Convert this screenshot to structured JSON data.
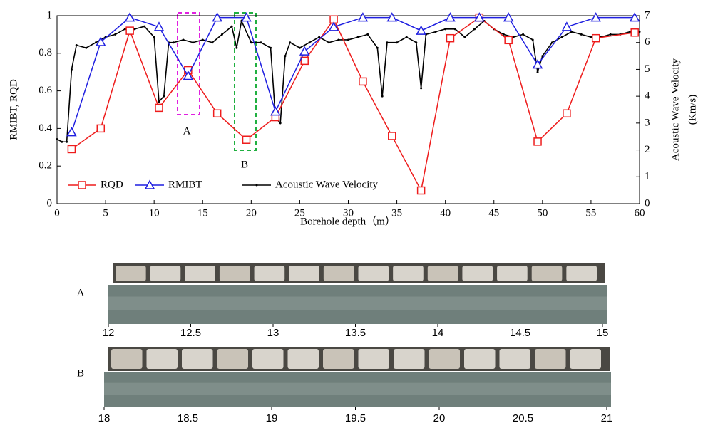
{
  "chart_data": {
    "type": "line",
    "xlabel": "Borehole depth（m）",
    "ylabel": "RMIBT, RQD",
    "y2label": [
      "Acoustic Wave Velocity",
      "(Km/s)"
    ],
    "annotations": [
      "A",
      "B"
    ],
    "xlim": [
      0,
      60
    ],
    "xticks": [
      0,
      5,
      10,
      15,
      20,
      25,
      30,
      35,
      40,
      45,
      50,
      55,
      60
    ],
    "ylim": [
      0,
      1
    ],
    "yticks": [
      0,
      0.2,
      0.4,
      0.6,
      0.8,
      1
    ],
    "y2lim": [
      0,
      7
    ],
    "y2ticks": [
      0,
      1,
      2,
      3,
      4,
      5,
      6,
      7
    ],
    "grid": false,
    "legend": "lower-left",
    "series": [
      {
        "name": "RQD",
        "color": "#ee1c1c",
        "marker": "square",
        "x": [
          1.5,
          4.5,
          7.5,
          10.5,
          13.5,
          16.5,
          19.5,
          22.5,
          25.5,
          28.5,
          31.5,
          34.5,
          37.5,
          40.5,
          43.5,
          46.5,
          49.5,
          52.5,
          55.5,
          59.5
        ],
        "values": [
          0.29,
          0.4,
          0.92,
          0.51,
          0.71,
          0.48,
          0.34,
          0.46,
          0.76,
          0.98,
          0.65,
          0.36,
          0.07,
          0.88,
          0.99,
          0.87,
          0.33,
          0.48,
          0.88,
          0.91
        ]
      },
      {
        "name": "RMIBT",
        "color": "#1f1fe0",
        "marker": "triangle",
        "x": [
          1.5,
          4.5,
          7.5,
          10.5,
          13.5,
          16.5,
          19.5,
          22.5,
          25.5,
          28.5,
          31.5,
          34.5,
          37.5,
          40.5,
          43.5,
          46.5,
          49.5,
          52.5,
          55.5,
          59.5
        ],
        "values": [
          0.38,
          0.86,
          0.99,
          0.94,
          0.68,
          0.99,
          0.99,
          0.49,
          0.81,
          0.94,
          0.99,
          0.99,
          0.92,
          0.99,
          0.99,
          0.99,
          0.74,
          0.94,
          0.99,
          0.99
        ]
      },
      {
        "name": "Acoustic Wave Velocity",
        "color": "#000000",
        "marker": "dot",
        "axis": "y2",
        "x": [
          0,
          0.5,
          1,
          1.5,
          2,
          3,
          4,
          5,
          6,
          7,
          8,
          9,
          10,
          10.5,
          11,
          11.5,
          12,
          13,
          14,
          15,
          16,
          17,
          18,
          18.5,
          19,
          20,
          21,
          22,
          22.5,
          23,
          23.5,
          24,
          25,
          26,
          27,
          28,
          29,
          30,
          31,
          32,
          33,
          33.5,
          34,
          35,
          36,
          37,
          37.5,
          38,
          39,
          40,
          41,
          42,
          43,
          44,
          45,
          46,
          47,
          48,
          49,
          49.5,
          50,
          51,
          52,
          53,
          54,
          55,
          56,
          57,
          58,
          59,
          60
        ],
        "values": [
          2.4,
          2.3,
          2.3,
          5.0,
          5.9,
          5.8,
          6.0,
          6.2,
          6.3,
          6.5,
          6.5,
          6.6,
          6.2,
          3.8,
          4.0,
          6.0,
          6.0,
          6.1,
          6.0,
          6.1,
          6.0,
          6.3,
          6.6,
          5.8,
          6.8,
          6.0,
          6.0,
          5.8,
          3.2,
          3.0,
          5.5,
          6.0,
          5.8,
          6.0,
          6.2,
          6.0,
          6.1,
          6.1,
          6.2,
          6.3,
          5.8,
          4.0,
          6.0,
          6.0,
          6.2,
          6.0,
          4.3,
          6.3,
          6.4,
          6.5,
          6.5,
          6.2,
          6.5,
          6.8,
          6.5,
          6.3,
          6.2,
          6.3,
          6.1,
          4.9,
          5.5,
          6.0,
          6.2,
          6.4,
          6.3,
          6.2,
          6.2,
          6.3,
          6.3,
          6.4,
          6.4
        ]
      }
    ]
  },
  "cores": [
    {
      "label": "A",
      "range": [
        12,
        15
      ],
      "ticks": [
        12,
        12.5,
        13,
        13.5,
        14,
        14.5,
        15
      ]
    },
    {
      "label": "B",
      "range": [
        18,
        21
      ],
      "ticks": [
        18,
        18.5,
        19,
        19.5,
        20,
        20.5,
        21
      ]
    }
  ]
}
